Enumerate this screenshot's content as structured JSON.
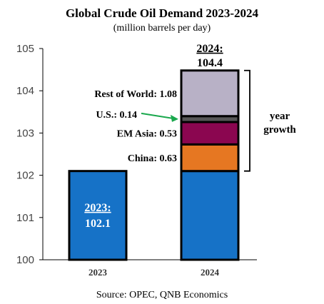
{
  "chart_data": {
    "type": "bar",
    "stacked": true,
    "title": "Global Crude Oil Demand 2023-2024",
    "subtitle": "(million barrels per day)",
    "categories": [
      "2023",
      "2024"
    ],
    "ylim": [
      100,
      105
    ],
    "yticks": [
      "100",
      "101",
      "102",
      "103",
      "104",
      "105"
    ],
    "bars": [
      {
        "category": "2023",
        "base": 102.1,
        "base_color": "#1672c7",
        "total_label_year": "2023:",
        "total_label_value": "102.1",
        "segments": []
      },
      {
        "category": "2024",
        "base": 102.1,
        "base_color": "#1672c7",
        "total_label_year": "2024:",
        "total_label_value": "104.4",
        "segments": [
          {
            "name": "China",
            "value": 0.63,
            "label": "China: 0.63",
            "color": "#e67722"
          },
          {
            "name": "EM Asia",
            "value": 0.53,
            "label": "EM Asia: 0.53",
            "color": "#8b0650"
          },
          {
            "name": "U.S.",
            "value": 0.14,
            "label": "U.S.: 0.14",
            "color": "#575757"
          },
          {
            "name": "Rest of World",
            "value": 1.08,
            "label": "Rest of World: 1.08",
            "color": "#b8b1c6"
          }
        ]
      }
    ],
    "annotation": {
      "bracket_label_line1": "year",
      "bracket_label_line2": "growth",
      "arrow_color": "#1aa84d"
    },
    "grid": false,
    "source": "Source: OPEC, QNB Economics"
  }
}
